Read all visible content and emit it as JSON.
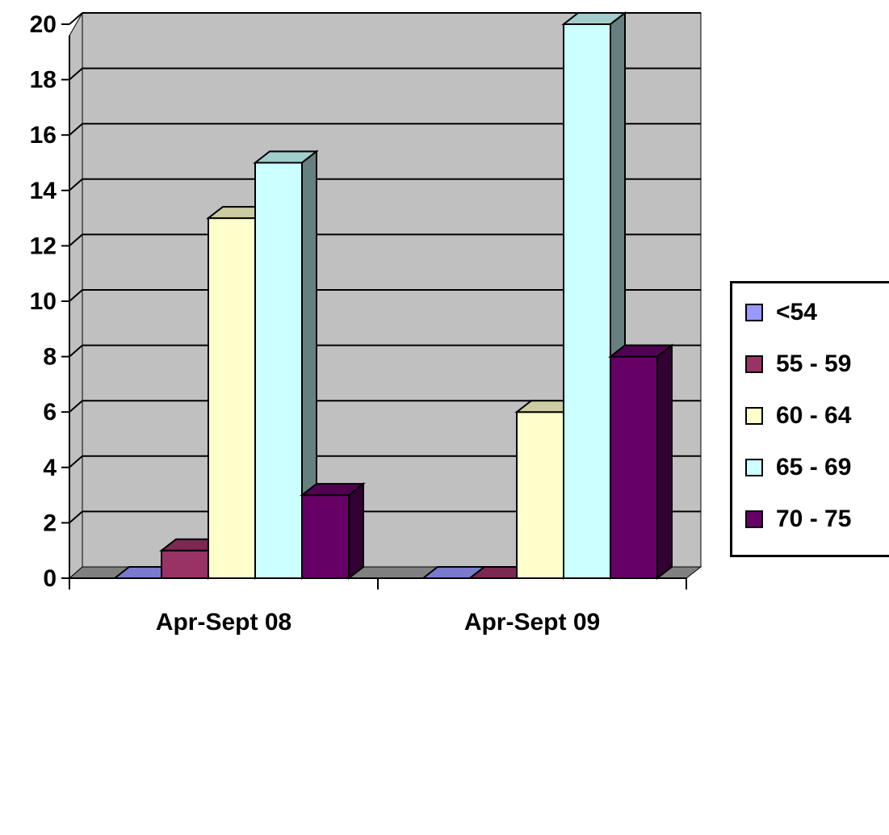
{
  "chart_data": {
    "type": "bar",
    "title": "",
    "xlabel": "",
    "ylabel": "",
    "categories": [
      "Apr-Sept 08",
      "Apr-Sept 09"
    ],
    "ylim": [
      0,
      20
    ],
    "yticks": [
      "0",
      "2",
      "4",
      "6",
      "8",
      "10",
      "12",
      "14",
      "16",
      "18",
      "20"
    ],
    "grid": true,
    "style": "3d-clustered",
    "legend_position": "right",
    "series": [
      {
        "name": "<54",
        "values": [
          0,
          0
        ],
        "color": "#9999FF"
      },
      {
        "name": "55 - 59",
        "values": [
          1,
          0
        ],
        "color": "#993366"
      },
      {
        "name": "60 - 64",
        "values": [
          13,
          6
        ],
        "color": "#FFFFCC"
      },
      {
        "name": "65 - 69",
        "values": [
          15,
          20
        ],
        "color": "#CCFFFF"
      },
      {
        "name": "70 - 75",
        "values": [
          3,
          8
        ],
        "color": "#660066"
      }
    ]
  },
  "colors": {
    "plot_background": "#C0C0C0",
    "floor": "#808080",
    "gridline": "#000000"
  }
}
